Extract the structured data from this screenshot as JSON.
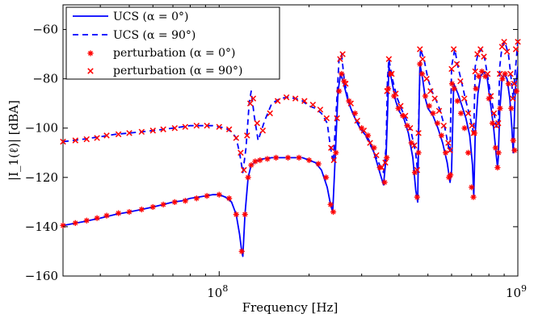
{
  "chart_data": {
    "type": "line",
    "title": "",
    "xlabel": "Frequency [Hz]",
    "ylabel": "|I_1(ℓ)| [dBA]",
    "xscale": "log",
    "xlim": [
      30000000,
      1000000000
    ],
    "ylim": [
      -160,
      -50
    ],
    "xticks": [
      {
        "value": 100000000,
        "base": "10",
        "exp": "8"
      },
      {
        "value": 1000000000,
        "base": "10",
        "exp": "9"
      }
    ],
    "yticks": [
      -160,
      -140,
      -120,
      -100,
      -80,
      -60
    ],
    "grid": false,
    "legend_position": "top-left",
    "legend": [
      {
        "label": "UCS (α = 0°)",
        "style": "solid",
        "marker": "none",
        "color": "#0000ff"
      },
      {
        "label": "UCS (α = 90°)",
        "style": "dashed",
        "marker": "none",
        "color": "#0000ff"
      },
      {
        "label": "perturbation (α = 0°)",
        "style": "none",
        "marker": "asterisk",
        "color": "#ff0000"
      },
      {
        "label": "perturbation (α = 90°)",
        "style": "none",
        "marker": "cross",
        "color": "#ff0000"
      }
    ],
    "series": [
      {
        "name": "UCS (α = 0°)",
        "x": [
          30000000.0,
          35000000.0,
          40000000.0,
          45000000.0,
          50000000.0,
          55000000.0,
          60000000.0,
          65000000.0,
          70000000.0,
          75000000.0,
          80000000.0,
          85000000.0,
          90000000.0,
          95000000.0,
          100000000.0,
          105000000.0,
          110000000.0,
          114000000.0,
          117000000.0,
          119000000.0,
          120000000.0,
          122000000.0,
          125000000.0,
          128000000.0,
          131000000.0,
          135000000.0,
          140000000.0,
          150000000.0,
          160000000.0,
          170000000.0,
          180000000.0,
          190000000.0,
          200000000.0,
          210000000.0,
          220000000.0,
          230000000.0,
          236000000.0,
          240000000.0,
          245000000.0,
          250000000.0,
          255000000.0,
          260000000.0,
          270000000.0,
          280000000.0,
          290000000.0,
          300000000.0,
          315000000.0,
          330000000.0,
          345000000.0,
          355000000.0,
          362000000.0,
          366000000.0,
          370000000.0,
          380000000.0,
          390000000.0,
          400000000.0,
          415000000.0,
          430000000.0,
          445000000.0,
          455000000.0,
          462000000.0,
          466000000.0,
          470000000.0,
          480000000.0,
          490000000.0,
          500000000.0,
          520000000.0,
          540000000.0,
          560000000.0,
          580000000.0,
          593000000.0,
          600000000.0,
          610000000.0,
          630000000.0,
          650000000.0,
          670000000.0,
          690000000.0,
          705000000.0,
          712000000.0,
          720000000.0,
          735000000.0,
          750000000.0,
          770000000.0,
          790000000.0,
          810000000.0,
          830000000.0,
          845000000.0,
          855000000.0,
          860000000.0,
          870000000.0,
          885000000.0,
          900000000.0,
          920000000.0,
          940000000.0,
          955000000.0,
          965000000.0,
          970000000.0,
          980000000.0,
          1000000000.0
        ],
        "y": [
          -139.5,
          -138,
          -136.5,
          -135,
          -134,
          -133,
          -132,
          -131,
          -130,
          -129.5,
          -128.5,
          -128,
          -127.5,
          -127,
          -127,
          -128,
          -130,
          -135,
          -143,
          -150,
          -152,
          -135,
          -120,
          -115,
          -114,
          -113,
          -112.5,
          -112,
          -112,
          -112,
          -112,
          -112,
          -113,
          -114,
          -117,
          -124,
          -131,
          -134,
          -110,
          -85,
          -78,
          -81,
          -89,
          -94,
          -98,
          -101,
          -104,
          -110,
          -118,
          -123,
          -112,
          -95,
          -75,
          -82,
          -89,
          -93,
          -96,
          -102,
          -112,
          -125,
          -130,
          -98,
          -74,
          -80,
          -88,
          -92,
          -95,
          -100,
          -106,
          -114,
          -122,
          -117,
          -82,
          -86,
          -91,
          -96,
          -103,
          -115,
          -128,
          -102,
          -86,
          -79,
          -77,
          -80,
          -90,
          -100,
          -110,
          -116,
          -112,
          -93,
          -80,
          -78,
          -80,
          -88,
          -100,
          -110,
          -102,
          -85,
          -75
        ]
      },
      {
        "name": "UCS (α = 90°)",
        "x": [
          30000000.0,
          35000000.0,
          40000000.0,
          45000000.0,
          50000000.0,
          55000000.0,
          60000000.0,
          65000000.0,
          70000000.0,
          75000000.0,
          80000000.0,
          85000000.0,
          90000000.0,
          95000000.0,
          100000000.0,
          105000000.0,
          110000000.0,
          114000000.0,
          117000000.0,
          120000000.0,
          123000000.0,
          126000000.0,
          128000000.0,
          131000000.0,
          135000000.0,
          142000000.0,
          150000000.0,
          160000000.0,
          170000000.0,
          180000000.0,
          190000000.0,
          200000000.0,
          210000000.0,
          220000000.0,
          230000000.0,
          236000000.0,
          241000000.0,
          246000000.0,
          252000000.0,
          257000000.0,
          262000000.0,
          272000000.0,
          285000000.0,
          300000000.0,
          315000000.0,
          330000000.0,
          345000000.0,
          355000000.0,
          362000000.0,
          366000000.0,
          370000000.0,
          380000000.0,
          395000000.0,
          410000000.0,
          425000000.0,
          440000000.0,
          455000000.0,
          462000000.0,
          466000000.0,
          472000000.0,
          485000000.0,
          500000000.0,
          515000000.0,
          530000000.0,
          550000000.0,
          570000000.0,
          587000000.0,
          593000000.0,
          600000000.0,
          615000000.0,
          630000000.0,
          650000000.0,
          670000000.0,
          690000000.0,
          705000000.0,
          712000000.0,
          720000000.0,
          735000000.0,
          755000000.0,
          775000000.0,
          795000000.0,
          815000000.0,
          835000000.0,
          850000000.0,
          860000000.0,
          870000000.0,
          885000000.0,
          905000000.0,
          930000000.0,
          950000000.0,
          965000000.0,
          975000000.0,
          1000000000.0
        ],
        "y": [
          -105.5,
          -104.5,
          -103.5,
          -102.5,
          -102,
          -101.5,
          -101,
          -100.5,
          -100,
          -99.5,
          -99,
          -99,
          -99,
          -99,
          -99.5,
          -100,
          -101.5,
          -104,
          -110,
          -118,
          -108,
          -90,
          -85,
          -95,
          -105,
          -97,
          -90,
          -88,
          -87.5,
          -88,
          -89,
          -91,
          -92,
          -94,
          -98,
          -108,
          -114,
          -95,
          -72,
          -70,
          -80,
          -90,
          -96,
          -100,
          -105,
          -110,
          -115,
          -118,
          -108,
          -80,
          -72,
          -80,
          -88,
          -93,
          -97,
          -102,
          -110,
          -118,
          -95,
          -68,
          -72,
          -80,
          -85,
          -88,
          -93,
          -100,
          -108,
          -110,
          -75,
          -68,
          -75,
          -82,
          -89,
          -95,
          -100,
          -102,
          -75,
          -70,
          -68,
          -72,
          -80,
          -88,
          -95,
          -100,
          -98,
          -75,
          -67,
          -65,
          -70,
          -80,
          -88,
          -80,
          -65
        ]
      },
      {
        "name": "perturbation (α = 0°)",
        "x": [
          30000000.0,
          33000000.0,
          36000000.0,
          39000000.0,
          42000000.0,
          46000000.0,
          50000000.0,
          55000000.0,
          60000000.0,
          65000000.0,
          71000000.0,
          77000000.0,
          84000000.0,
          91000000.0,
          100000000.0,
          108000000.0,
          114000000.0,
          119000000.0,
          122000000.0,
          125000000.0,
          128000000.0,
          132000000.0,
          137000000.0,
          145000000.0,
          155000000.0,
          170000000.0,
          185000000.0,
          200000000.0,
          215000000.0,
          228000000.0,
          236000000.0,
          241000000.0,
          246000000.0,
          252000000.0,
          257000000.0,
          262000000.0,
          272000000.0,
          285000000.0,
          300000000.0,
          315000000.0,
          330000000.0,
          345000000.0,
          358000000.0,
          364000000.0,
          368000000.0,
          375000000.0,
          385000000.0,
          398000000.0,
          412000000.0,
          426000000.0,
          440000000.0,
          452000000.0,
          460000000.0,
          465000000.0,
          470000000.0,
          478000000.0,
          490000000.0,
          505000000.0,
          520000000.0,
          538000000.0,
          555000000.0,
          573000000.0,
          588000000.0,
          595000000.0,
          602000000.0,
          612000000.0,
          628000000.0,
          645000000.0,
          663000000.0,
          682000000.0,
          700000000.0,
          710000000.0,
          716000000.0,
          724000000.0,
          740000000.0,
          758000000.0,
          778000000.0,
          800000000.0,
          822000000.0,
          842000000.0,
          855000000.0,
          862000000.0,
          872000000.0,
          888000000.0,
          906000000.0,
          930000000.0,
          950000000.0,
          965000000.0,
          975000000.0,
          990000000.0
        ],
        "y": [
          -139.5,
          -138.5,
          -137.5,
          -136.5,
          -135.5,
          -134.5,
          -134,
          -133,
          -132,
          -131,
          -130,
          -129.5,
          -128.5,
          -127.5,
          -127,
          -128.5,
          -135,
          -150,
          -135,
          -120,
          -115,
          -113.5,
          -113,
          -112.5,
          -112,
          -112,
          -112,
          -113,
          -114.5,
          -120,
          -131,
          -134,
          -110,
          -85,
          -78,
          -81,
          -89,
          -94,
          -100,
          -103,
          -108,
          -116,
          -122,
          -112,
          -84,
          -78,
          -87,
          -92,
          -95,
          -99,
          -106,
          -118,
          -128,
          -110,
          -74,
          -78,
          -87,
          -91,
          -94,
          -98,
          -103,
          -110,
          -120,
          -119,
          -82,
          -84,
          -89,
          -94,
          -100,
          -110,
          -124,
          -128,
          -102,
          -84,
          -79,
          -77,
          -79,
          -88,
          -98,
          -108,
          -116,
          -110,
          -92,
          -80,
          -78,
          -82,
          -92,
          -105,
          -109,
          -85
        ]
      },
      {
        "name": "perturbation (α = 90°)",
        "x": [
          30000000.0,
          33000000.0,
          36000000.0,
          39000000.0,
          42000000.0,
          46000000.0,
          50000000.0,
          55000000.0,
          60000000.0,
          65000000.0,
          71000000.0,
          77000000.0,
          84000000.0,
          91000000.0,
          100000000.0,
          108000000.0,
          114000000.0,
          118000000.0,
          121000000.0,
          124000000.0,
          127000000.0,
          130000000.0,
          134000000.0,
          140000000.0,
          148000000.0,
          157000000.0,
          168000000.0,
          180000000.0,
          193000000.0,
          206000000.0,
          218000000.0,
          229000000.0,
          237000000.0,
          242000000.0,
          248000000.0,
          254000000.0,
          259000000.0,
          265000000.0,
          276000000.0,
          290000000.0,
          305000000.0,
          320000000.0,
          336000000.0,
          350000000.0,
          360000000.0,
          365000000.0,
          370000000.0,
          378000000.0,
          390000000.0,
          405000000.0,
          420000000.0,
          436000000.0,
          450000000.0,
          460000000.0,
          465000000.0,
          470000000.0,
          480000000.0,
          495000000.0,
          510000000.0,
          527000000.0,
          545000000.0,
          565000000.0,
          585000000.0,
          593000000.0,
          600000000.0,
          610000000.0,
          625000000.0,
          642000000.0,
          662000000.0,
          682000000.0,
          702000000.0,
          712000000.0,
          720000000.0,
          732000000.0,
          750000000.0,
          770000000.0,
          792000000.0,
          812000000.0,
          832000000.0,
          848000000.0,
          860000000.0,
          870000000.0,
          885000000.0,
          900000000.0,
          920000000.0,
          945000000.0,
          962000000.0,
          972000000.0,
          985000000.0,
          1000000000.0
        ],
        "y": [
          -105.5,
          -105,
          -104.5,
          -104,
          -103,
          -102.5,
          -102,
          -101.5,
          -101,
          -100.5,
          -100,
          -99.5,
          -99,
          -99,
          -99.5,
          -100.5,
          -104,
          -110,
          -117,
          -103,
          -90,
          -88,
          -98,
          -101,
          -94,
          -89,
          -87.5,
          -88,
          -89,
          -90.5,
          -92.5,
          -96,
          -108,
          -113,
          -96,
          -72,
          -70,
          -82,
          -90,
          -97,
          -101,
          -106,
          -111,
          -116,
          -114,
          -85,
          -72,
          -78,
          -86,
          -91,
          -95,
          -100,
          -107,
          -117,
          -102,
          -68,
          -72,
          -80,
          -85,
          -88,
          -93,
          -99,
          -106,
          -109,
          -76,
          -68,
          -74,
          -81,
          -88,
          -94,
          -99,
          -102,
          -77,
          -70,
          -68,
          -71,
          -78,
          -87,
          -94,
          -99,
          -98,
          -78,
          -67,
          -65,
          -69,
          -78,
          -88,
          -82,
          -68,
          -65
        ]
      }
    ]
  }
}
